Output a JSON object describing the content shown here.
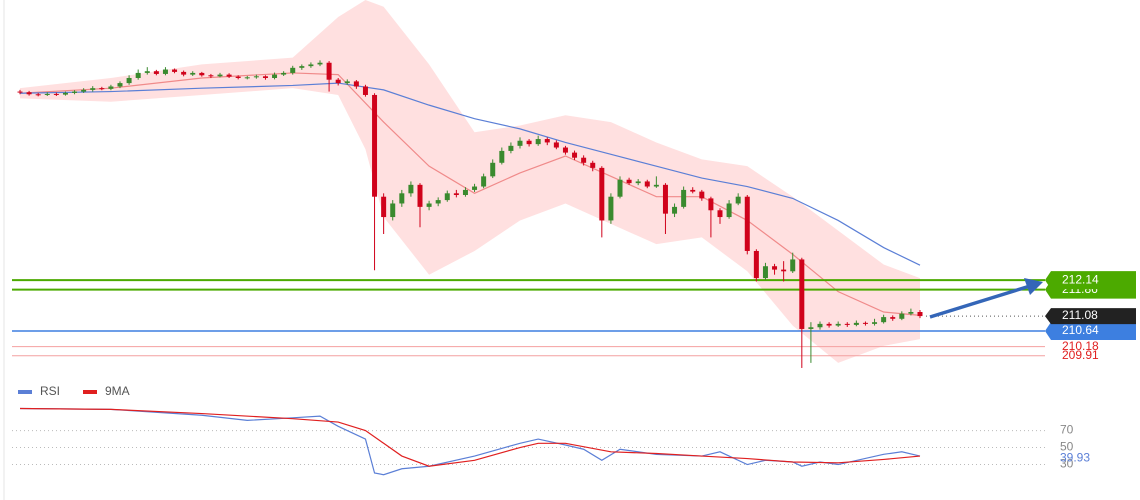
{
  "chart_data": [
    {
      "type": "candlestick",
      "xlim": [
        0,
        99
      ],
      "ylim": [
        209.49,
        220.4
      ],
      "up_color": "#3a8a2e",
      "down_color": "#d0021b",
      "ohlc": [
        [
          217.7,
          217.75,
          217.62,
          217.68
        ],
        [
          217.68,
          217.72,
          217.58,
          217.62
        ],
        [
          217.62,
          217.66,
          217.56,
          217.6
        ],
        [
          217.6,
          217.68,
          217.57,
          217.63
        ],
        [
          217.63,
          217.67,
          217.57,
          217.61
        ],
        [
          217.61,
          217.7,
          217.58,
          217.66
        ],
        [
          217.66,
          217.74,
          217.62,
          217.7
        ],
        [
          217.7,
          217.8,
          217.66,
          217.75
        ],
        [
          217.75,
          217.86,
          217.7,
          217.8
        ],
        [
          217.8,
          217.84,
          217.74,
          217.78
        ],
        [
          217.78,
          217.9,
          217.74,
          217.85
        ],
        [
          217.85,
          218.0,
          217.8,
          217.95
        ],
        [
          217.95,
          218.18,
          217.9,
          218.1
        ],
        [
          218.1,
          218.35,
          218.05,
          218.25
        ],
        [
          218.25,
          218.42,
          218.2,
          218.3
        ],
        [
          218.3,
          218.34,
          218.18,
          218.22
        ],
        [
          218.22,
          218.42,
          218.18,
          218.35
        ],
        [
          218.35,
          218.38,
          218.24,
          218.28
        ],
        [
          218.28,
          218.32,
          218.15,
          218.2
        ],
        [
          218.2,
          218.3,
          218.16,
          218.25
        ],
        [
          218.25,
          218.28,
          218.14,
          218.18
        ],
        [
          218.18,
          218.22,
          218.1,
          218.15
        ],
        [
          218.15,
          218.25,
          218.12,
          218.2
        ],
        [
          218.2,
          218.24,
          218.1,
          218.14
        ],
        [
          218.14,
          218.18,
          218.06,
          218.1
        ],
        [
          218.1,
          218.16,
          218.06,
          218.12
        ],
        [
          218.12,
          218.2,
          218.08,
          218.15
        ],
        [
          218.15,
          218.18,
          218.05,
          218.1
        ],
        [
          218.1,
          218.26,
          218.06,
          218.2
        ],
        [
          218.2,
          218.3,
          218.16,
          218.25
        ],
        [
          218.25,
          218.46,
          218.2,
          218.4
        ],
        [
          218.4,
          218.5,
          218.34,
          218.45
        ],
        [
          218.45,
          218.56,
          218.4,
          218.5
        ],
        [
          218.5,
          218.62,
          218.45,
          218.55
        ],
        [
          218.55,
          218.6,
          217.7,
          218.05
        ],
        [
          218.05,
          218.1,
          217.88,
          217.95
        ],
        [
          217.95,
          218.06,
          217.9,
          218.0
        ],
        [
          218.0,
          218.04,
          217.78,
          217.85
        ],
        [
          217.85,
          217.9,
          217.55,
          217.6
        ],
        [
          217.6,
          217.65,
          212.43,
          214.6
        ],
        [
          214.6,
          214.7,
          213.5,
          214.0
        ],
        [
          214.0,
          214.5,
          213.9,
          214.4
        ],
        [
          214.4,
          214.8,
          214.3,
          214.7
        ],
        [
          214.7,
          215.05,
          214.6,
          214.95
        ],
        [
          214.95,
          215.0,
          213.7,
          214.3
        ],
        [
          214.3,
          214.48,
          214.2,
          214.4
        ],
        [
          214.4,
          214.58,
          214.32,
          214.5
        ],
        [
          214.5,
          214.78,
          214.45,
          214.7
        ],
        [
          214.7,
          214.8,
          214.58,
          214.65
        ],
        [
          214.65,
          214.88,
          214.6,
          214.8
        ],
        [
          214.8,
          214.98,
          214.74,
          214.9
        ],
        [
          214.9,
          215.28,
          214.85,
          215.2
        ],
        [
          215.2,
          215.7,
          215.15,
          215.6
        ],
        [
          215.6,
          216.05,
          215.55,
          215.95
        ],
        [
          215.95,
          216.2,
          215.88,
          216.1
        ],
        [
          216.1,
          216.35,
          216.02,
          216.25
        ],
        [
          216.25,
          216.3,
          216.08,
          216.15
        ],
        [
          216.15,
          216.4,
          216.1,
          216.3
        ],
        [
          216.3,
          216.35,
          216.12,
          216.2
        ],
        [
          216.2,
          216.26,
          216.0,
          216.05
        ],
        [
          216.05,
          216.1,
          215.84,
          215.9
        ],
        [
          215.9,
          215.96,
          215.68,
          215.75
        ],
        [
          215.75,
          215.82,
          215.52,
          215.6
        ],
        [
          215.6,
          215.66,
          215.35,
          215.45
        ],
        [
          215.45,
          215.5,
          213.4,
          213.9
        ],
        [
          213.9,
          214.7,
          213.8,
          214.6
        ],
        [
          214.6,
          215.2,
          214.55,
          215.1
        ],
        [
          215.1,
          215.16,
          214.95,
          215.0
        ],
        [
          215.0,
          215.12,
          214.94,
          215.05
        ],
        [
          215.05,
          215.1,
          214.85,
          214.9
        ],
        [
          214.9,
          215.2,
          214.86,
          214.95
        ],
        [
          214.95,
          215.0,
          213.5,
          214.1
        ],
        [
          214.1,
          214.4,
          214.0,
          214.3
        ],
        [
          214.3,
          214.9,
          214.25,
          214.8
        ],
        [
          214.8,
          214.88,
          214.7,
          214.75
        ],
        [
          214.75,
          214.8,
          214.48,
          214.55
        ],
        [
          214.55,
          214.6,
          213.4,
          214.2
        ],
        [
          214.2,
          214.26,
          213.8,
          214.0
        ],
        [
          214.0,
          214.5,
          213.95,
          214.4
        ],
        [
          214.4,
          214.7,
          214.35,
          214.6
        ],
        [
          214.6,
          214.65,
          212.9,
          213.0
        ],
        [
          213.0,
          213.05,
          212.1,
          212.2
        ],
        [
          212.2,
          212.65,
          212.15,
          212.55
        ],
        [
          212.55,
          212.62,
          212.3,
          212.45
        ],
        [
          212.45,
          212.7,
          212.1,
          212.4
        ],
        [
          212.4,
          212.95,
          212.35,
          212.75
        ],
        [
          212.75,
          212.8,
          209.55,
          210.7
        ],
        [
          210.7,
          210.9,
          209.7,
          210.75
        ],
        [
          210.75,
          210.92,
          210.68,
          210.85
        ],
        [
          210.85,
          210.9,
          210.74,
          210.8
        ],
        [
          210.8,
          210.92,
          210.76,
          210.85
        ],
        [
          210.85,
          210.9,
          210.76,
          210.82
        ],
        [
          210.82,
          210.95,
          210.78,
          210.88
        ],
        [
          210.88,
          210.92,
          210.8,
          210.85
        ],
        [
          210.85,
          211.0,
          210.8,
          210.9
        ],
        [
          210.9,
          211.12,
          210.86,
          211.05
        ],
        [
          211.05,
          211.1,
          210.94,
          211.0
        ],
        [
          211.0,
          211.22,
          210.96,
          211.15
        ],
        [
          211.15,
          211.3,
          211.1,
          211.2
        ],
        [
          211.2,
          211.26,
          211.02,
          211.08
        ]
      ],
      "overlays": [
        {
          "kind": "band",
          "color": "#ffd6d6",
          "x": [
            0,
            10,
            20,
            30,
            35,
            38,
            40,
            45,
            50,
            55,
            60,
            65,
            70,
            75,
            80,
            85,
            90,
            95,
            99
          ],
          "upper": [
            217.8,
            218.1,
            218.5,
            218.7,
            219.9,
            220.4,
            220.2,
            218.5,
            216.5,
            216.7,
            217.0,
            216.8,
            216.2,
            215.7,
            215.5,
            214.6,
            213.6,
            212.6,
            212.2
          ],
          "lower": [
            217.5,
            217.4,
            217.6,
            217.8,
            217.6,
            216.0,
            214.0,
            212.3,
            213.0,
            213.9,
            214.4,
            213.8,
            213.2,
            213.4,
            212.4,
            210.8,
            209.7,
            210.2,
            210.4
          ]
        },
        {
          "kind": "line",
          "color": "#f08a8a",
          "x": [
            0,
            10,
            20,
            30,
            35,
            40,
            45,
            50,
            55,
            60,
            65,
            70,
            75,
            80,
            85,
            90,
            95,
            99
          ],
          "values": [
            217.65,
            217.8,
            218.1,
            218.25,
            218.2,
            216.8,
            215.5,
            214.7,
            215.3,
            215.8,
            215.2,
            214.6,
            214.6,
            213.9,
            212.9,
            211.8,
            211.2,
            211.1
          ]
        },
        {
          "kind": "line",
          "color": "#5b7fd6",
          "x": [
            0,
            10,
            20,
            30,
            35,
            40,
            45,
            50,
            55,
            60,
            65,
            70,
            75,
            80,
            85,
            90,
            95,
            99
          ],
          "values": [
            217.65,
            217.7,
            217.8,
            217.88,
            217.95,
            217.75,
            217.3,
            216.9,
            216.6,
            216.2,
            215.85,
            215.5,
            215.15,
            214.9,
            214.55,
            213.9,
            213.1,
            212.58
          ]
        }
      ],
      "levels": [
        {
          "value": 211.86,
          "color": "#4caa00",
          "width": 2,
          "style": "box"
        },
        {
          "value": 212.14,
          "color": "#4caa00",
          "width": 2,
          "style": "box"
        },
        {
          "value": 210.64,
          "color": "#3d7fe0",
          "width": 1.5,
          "style": "box"
        },
        {
          "value": 210.18,
          "color": "#f4a0a0",
          "width": 1,
          "style": "text",
          "text_color": "#e02020"
        },
        {
          "value": 209.91,
          "color": "#f4a0a0",
          "width": 1,
          "style": "text",
          "text_color": "#e02020"
        }
      ],
      "last_price_color": "#222222"
    },
    {
      "type": "line",
      "xlim": [
        0,
        99
      ],
      "ylim": [
        0,
        106
      ],
      "yticks": [
        70,
        50,
        30
      ],
      "grid": true,
      "legend": "top-left",
      "series": [
        {
          "name": "RSI",
          "color": "#5b7fd6",
          "x": [
            0,
            10,
            20,
            25,
            30,
            33,
            35,
            38,
            39,
            40,
            42,
            45,
            50,
            55,
            57,
            60,
            62,
            64,
            66,
            70,
            75,
            77,
            80,
            82,
            85,
            86,
            88,
            90,
            95,
            97,
            99
          ],
          "values": [
            96,
            95,
            88,
            82,
            85,
            87,
            75,
            60,
            20,
            18,
            25,
            28,
            40,
            55,
            60,
            53,
            48,
            35,
            48,
            42,
            40,
            45,
            30,
            35,
            33,
            28,
            33,
            30,
            42,
            45,
            39.93
          ]
        },
        {
          "name": "9MA",
          "color": "#e02020",
          "x": [
            0,
            10,
            20,
            30,
            35,
            38,
            40,
            42,
            45,
            50,
            55,
            57,
            60,
            65,
            70,
            75,
            80,
            85,
            90,
            95,
            99
          ],
          "values": [
            96,
            95,
            90,
            84,
            80,
            70,
            55,
            40,
            28,
            35,
            50,
            55,
            55,
            45,
            43,
            40,
            37,
            33,
            32,
            36,
            40
          ]
        }
      ]
    }
  ]
}
